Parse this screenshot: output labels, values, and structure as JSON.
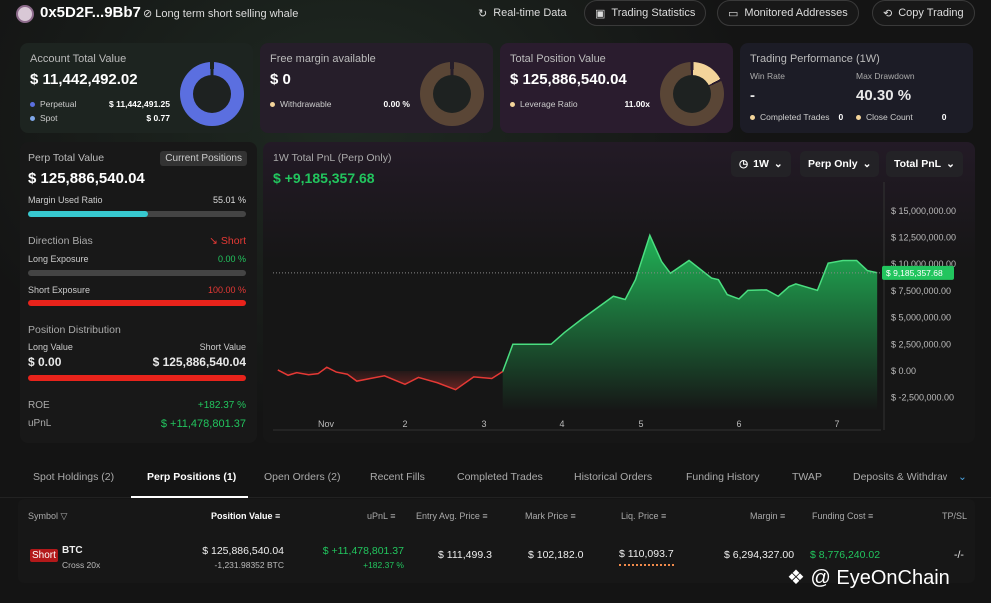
{
  "header": {
    "address": "0x5D2F...9Bb7",
    "tag": "Long term short selling whale",
    "buttons": [
      "Real-time Data",
      "Trading Statistics",
      "Monitored Addresses",
      "Copy Trading"
    ]
  },
  "cards": {
    "account": {
      "title": "Account Total Value",
      "value": "$ 11,442,492.02",
      "rows": [
        {
          "label": "Perpetual",
          "value": "$ 11,442,491.25"
        },
        {
          "label": "Spot",
          "value": "$ 0.77"
        }
      ]
    },
    "margin": {
      "title": "Free margin available",
      "value": "$ 0",
      "rows": [
        {
          "label": "Withdrawable",
          "value": "0.00 %"
        }
      ]
    },
    "position": {
      "title": "Total Position Value",
      "value": "$ 125,886,540.04",
      "rows": [
        {
          "label": "Leverage Ratio",
          "value": "11.00x"
        }
      ]
    },
    "performance": {
      "title": "Trading Performance (1W)",
      "win_rate_label": "Win Rate",
      "win_rate": "-",
      "drawdown_label": "Max Drawdown",
      "drawdown": "40.30 %",
      "completed_label": "Completed Trades",
      "completed": "0",
      "close_label": "Close Count",
      "close": "0"
    }
  },
  "perp": {
    "title": "Perp Total Value",
    "current_btn": "Current Positions",
    "value": "$ 125,886,540.04",
    "margin_label": "Margin Used Ratio",
    "margin_ratio": "55.01 %",
    "margin_fraction": 0.5501,
    "bias_label": "Direction Bias",
    "bias": "Short",
    "long_exp_label": "Long Exposure",
    "long_exp": "0.00 %",
    "short_exp_label": "Short Exposure",
    "short_exp": "100.00 %",
    "dist_label": "Position Distribution",
    "long_val_label": "Long Value",
    "long_val": "$ 0.00",
    "short_val_label": "Short Value",
    "short_val": "$ 125,886,540.04",
    "roe_label": "ROE",
    "roe": "+182.37 %",
    "upnl_label": "uPnL",
    "upnl": "$ +11,478,801.37"
  },
  "chart_panel": {
    "title": "1W Total PnL (Perp Only)",
    "value": "$ +9,185,357.68",
    "dropdowns": [
      "1W",
      "Perp Only",
      "Total PnL"
    ]
  },
  "chart_data": {
    "type": "area",
    "x_unit": "day of November",
    "x_ticks": [
      {
        "x": 1,
        "label": "Nov"
      },
      {
        "x": 2,
        "label": "2"
      },
      {
        "x": 3,
        "label": "3"
      },
      {
        "x": 4,
        "label": "4"
      },
      {
        "x": 5,
        "label": "5"
      },
      {
        "x": 6,
        "label": "6"
      },
      {
        "x": 7,
        "label": "7"
      }
    ],
    "y_ticks": [
      "$ 15,000,000.00",
      "$ 12,500,000.00",
      "$ 10,000,000.00",
      "$ 7,500,000.00",
      "$ 5,000,000.00",
      "$ 2,500,000.00",
      "$ 0.00",
      "$ -2,500,000.00"
    ],
    "y_tick_values": [
      15000000,
      12500000,
      10000000,
      7500000,
      5000000,
      2500000,
      0,
      -2500000
    ],
    "ylim": [
      -2500000,
      15000000
    ],
    "current_label": "$ 9,185,357.68",
    "current_value": 9185357.68,
    "x": [
      0.39,
      0.52,
      0.63,
      0.78,
      0.9,
      1.01,
      1.13,
      1.27,
      1.39,
      1.56,
      1.74,
      2.0,
      2.17,
      2.41,
      2.64,
      2.87,
      3.1,
      3.24,
      3.37,
      3.65,
      3.86,
      4.03,
      4.24,
      4.65,
      4.8,
      4.93,
      5.09,
      5.21,
      5.3,
      5.49,
      5.72,
      5.79,
      5.88,
      6.0,
      6.09,
      6.28,
      6.4,
      6.51,
      6.58,
      6.8,
      6.91,
      7.06,
      7.2,
      7.31,
      7.41
    ],
    "y_millions": [
      0.1,
      -0.4,
      -0.15,
      -0.35,
      -0.25,
      0.35,
      -0.1,
      -0.3,
      -0.95,
      -0.7,
      -0.45,
      -1.25,
      -0.6,
      -1.1,
      -1.75,
      -0.55,
      -0.7,
      -0.05,
      2.5,
      2.5,
      2.5,
      3.6,
      4.8,
      7.0,
      6.7,
      8.55,
      12.7,
      10.25,
      9.15,
      10.35,
      8.7,
      8.55,
      7.15,
      6.75,
      7.55,
      7.6,
      7.0,
      7.9,
      8.15,
      7.55,
      10.1,
      10.35,
      10.35,
      9.4,
      9.2
    ],
    "colors": {
      "positive": "#22c55e",
      "negative": "#e53935"
    }
  },
  "tabs": {
    "items": [
      "Spot Holdings (2)",
      "Perp Positions (1)",
      "Open Orders (2)",
      "Recent Fills",
      "Completed Trades",
      "Historical Orders",
      "Funding History",
      "TWAP",
      "Deposits & Withdraw"
    ],
    "active": 1
  },
  "table": {
    "headers": [
      "Symbol",
      "Position Value",
      "uPnL",
      "Entry Avg. Price",
      "Mark Price",
      "Liq. Price",
      "Margin",
      "Funding Cost",
      "TP/SL"
    ],
    "rows": [
      {
        "side": "Short",
        "symbol": "BTC",
        "mode": "Cross 20x",
        "position_value": "$ 125,886,540.04",
        "size": "-1,231.98352 BTC",
        "upnl": "$ +11,478,801.37",
        "upnl_pct": "+182.37 %",
        "entry": "$ 111,499.3",
        "mark": "$ 102,182.0",
        "liq": "$ 110,093.7",
        "margin": "$ 6,294,327.00",
        "funding": "$ 8,776,240.02",
        "tpsl": "-/-"
      }
    ]
  },
  "watermark": "@ EyeOnChain"
}
